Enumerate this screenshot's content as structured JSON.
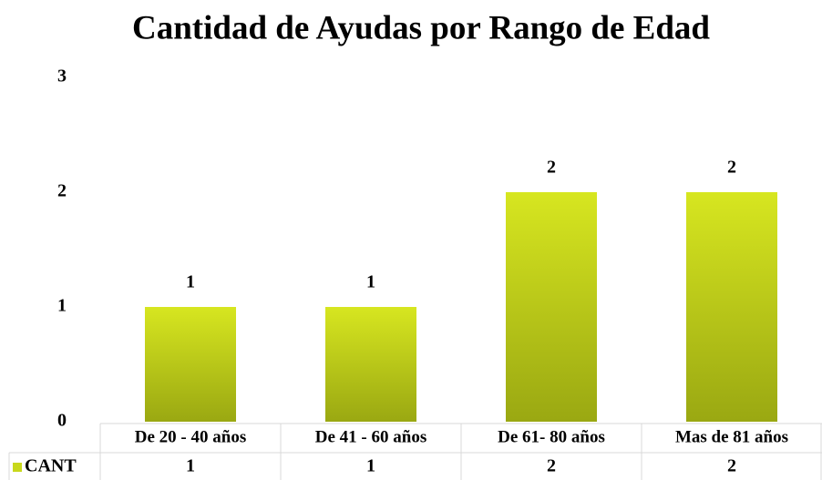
{
  "chart_data": {
    "type": "bar",
    "title": "Cantidad de Ayudas por Rango de Edad",
    "categories": [
      "De 20 - 40 años",
      "De 41 - 60 años",
      "De 61- 80 años",
      "Mas de 81 años"
    ],
    "series": [
      {
        "name": "CANT",
        "color": "#c8d81c",
        "values": [
          1,
          1,
          2,
          2
        ]
      }
    ],
    "ylim": [
      0,
      3
    ],
    "yticks": [
      0,
      1,
      2,
      3
    ],
    "grid": false,
    "data_table": true
  }
}
